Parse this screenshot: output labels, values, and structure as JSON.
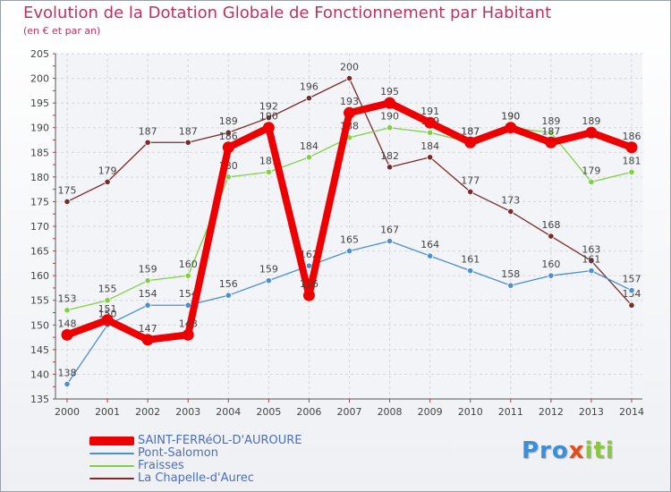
{
  "header": {
    "title": "Evolution de la Dotation Globale de Fonctionnement par Habitant",
    "subtitle": "(en € et par an)"
  },
  "logo": {
    "p1": "Pro",
    "x": "x",
    "p2": "iti"
  },
  "chart_data": {
    "type": "line",
    "title": "Evolution de la Dotation Globale de Fonctionnement par Habitant",
    "subtitle": "(en € et par an)",
    "xlabel": "",
    "ylabel": "",
    "categories": [
      "2000",
      "2001",
      "2002",
      "2003",
      "2004",
      "2005",
      "2006",
      "2007",
      "2008",
      "2009",
      "2010",
      "2011",
      "2012",
      "2013",
      "2014"
    ],
    "ylim": [
      135,
      205
    ],
    "yticks": [
      135,
      140,
      145,
      150,
      155,
      160,
      165,
      170,
      175,
      180,
      185,
      190,
      195,
      200,
      205
    ],
    "grid": true,
    "series": [
      {
        "name": "La Chapelle-d'Aurec",
        "color": "#7b2a2a",
        "values": [
          175,
          179,
          187,
          187,
          189,
          192,
          196,
          200,
          182,
          184,
          177,
          173,
          168,
          163,
          154
        ]
      },
      {
        "name": "Fraisses",
        "color": "#7ed13f",
        "values": [
          153,
          155,
          159,
          160,
          180,
          181,
          184,
          188,
          190,
          189,
          187,
          190,
          189,
          179,
          181
        ]
      },
      {
        "name": "Pont-Salomon",
        "color": "#4a8fd0",
        "values": [
          138,
          150,
          154,
          154,
          156,
          159,
          162,
          165,
          167,
          164,
          161,
          158,
          160,
          161,
          157
        ]
      },
      {
        "name": "SAINT-FERRéOL-D'AUROURE",
        "color": "#ee0000",
        "values": [
          148,
          151,
          147,
          148,
          186,
          190,
          156,
          193,
          195,
          191,
          187,
          190,
          187,
          189,
          186
        ]
      }
    ],
    "legend": [
      {
        "name": "SAINT-FERRéOL-D'AUROURE",
        "color": "#ee0000"
      },
      {
        "name": "Pont-Salomon",
        "color": "#4a8fd0"
      },
      {
        "name": "Fraisses",
        "color": "#7ed13f"
      },
      {
        "name": "La Chapelle-d'Aurec",
        "color": "#7b2a2a"
      }
    ],
    "legend_position": "bottom-left"
  }
}
